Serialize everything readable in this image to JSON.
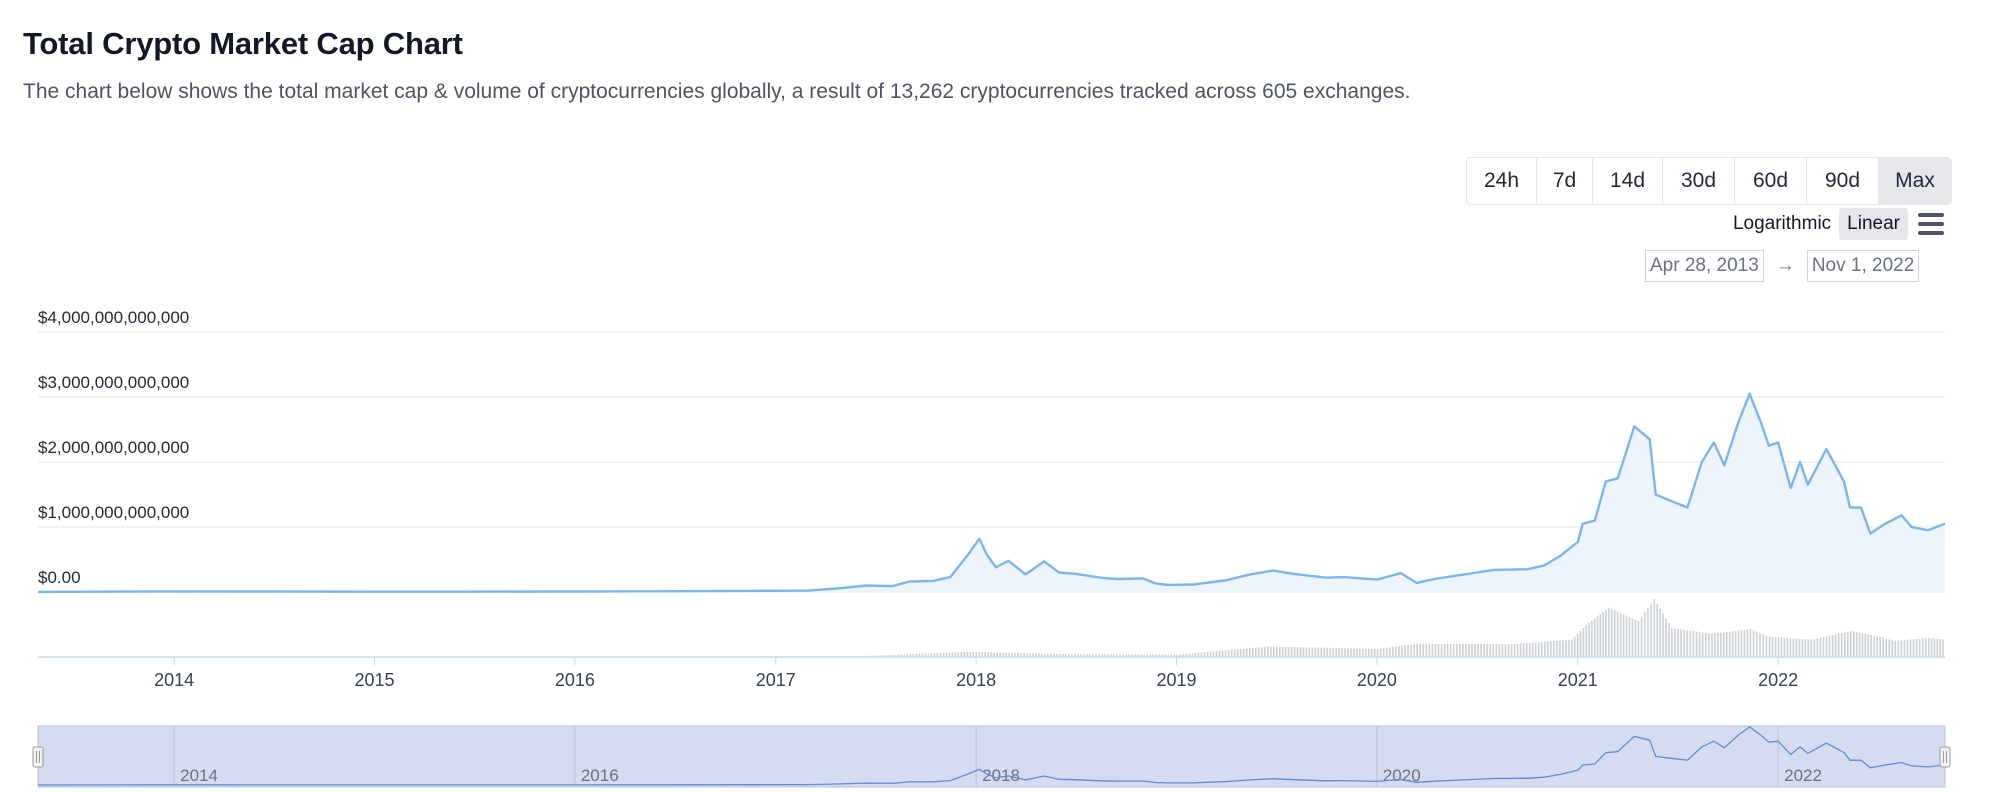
{
  "header": {
    "title": "Total Crypto Market Cap Chart",
    "description": "The chart below shows the total market cap & volume of cryptocurrencies globally, a result of 13,262 cryptocurrencies tracked across 605 exchanges."
  },
  "controls": {
    "ranges": [
      "24h",
      "7d",
      "14d",
      "30d",
      "60d",
      "90d",
      "Max"
    ],
    "active_range": "Max",
    "scale_log": "Logarithmic",
    "scale_linear": "Linear",
    "active_scale": "Linear",
    "menu_icon": "hamburger-menu-icon",
    "date_from": "Apr 28, 2013",
    "date_arrow": "→",
    "date_to": "Nov 1, 2022"
  },
  "colors": {
    "line": "#7cb5ec",
    "area_fill": "#eef4fc",
    "volume": "#cbd0d6",
    "navigator_fill": "#d5dcef",
    "grid": "#e6e6e6"
  },
  "chart_data": {
    "type": "area",
    "title": "",
    "xlabel": "",
    "ylabel": "",
    "y_ticks": [
      "$0.00",
      "$1,000,000,000,000",
      "$2,000,000,000,000",
      "$3,000,000,000,000",
      "$4,000,000,000,000"
    ],
    "ylim": [
      0,
      4000000000000
    ],
    "xlim": [
      "2013-04-28",
      "2022-11-01"
    ],
    "x_ticks": [
      "2014",
      "2015",
      "2016",
      "2017",
      "2018",
      "2019",
      "2020",
      "2021",
      "2022"
    ],
    "navigator_ticks": [
      "2014",
      "2016",
      "2018",
      "2020",
      "2022"
    ],
    "grid": true,
    "legend": "none",
    "series": [
      {
        "x": [
          "2013-04-28",
          "2013-12-01",
          "2014-06-01",
          "2015-01-01",
          "2015-06-01",
          "2016-01-01",
          "2016-06-01",
          "2017-01-01",
          "2017-03-01",
          "2017-05-01",
          "2017-06-15",
          "2017-08-01",
          "2017-09-01",
          "2017-10-15",
          "2017-11-15",
          "2017-12-15",
          "2018-01-07",
          "2018-01-20",
          "2018-02-06",
          "2018-03-01",
          "2018-04-01",
          "2018-05-05",
          "2018-06-01",
          "2018-07-01",
          "2018-08-15",
          "2018-09-15",
          "2018-11-01",
          "2018-11-25",
          "2018-12-15",
          "2019-02-01",
          "2019-04-01",
          "2019-05-15",
          "2019-06-26",
          "2019-08-01",
          "2019-10-01",
          "2019-11-01",
          "2020-01-01",
          "2020-02-14",
          "2020-03-13",
          "2020-04-15",
          "2020-06-01",
          "2020-08-01",
          "2020-10-01",
          "2020-11-01",
          "2020-12-01",
          "2021-01-01",
          "2021-01-10",
          "2021-02-01",
          "2021-02-21",
          "2021-03-15",
          "2021-04-14",
          "2021-05-12",
          "2021-05-23",
          "2021-06-20",
          "2021-07-20",
          "2021-08-15",
          "2021-09-06",
          "2021-09-25",
          "2021-10-20",
          "2021-11-10",
          "2021-12-01",
          "2021-12-15",
          "2022-01-01",
          "2022-01-24",
          "2022-02-10",
          "2022-02-24",
          "2022-03-30",
          "2022-05-01",
          "2022-05-12",
          "2022-06-01",
          "2022-06-18",
          "2022-07-15",
          "2022-08-14",
          "2022-09-01",
          "2022-10-01",
          "2022-11-01"
        ],
        "y": [
          1500000000,
          10000000000,
          7000000000,
          5000000000,
          4000000000,
          7000000000,
          11000000000,
          18000000000,
          22000000000,
          60000000000,
          100000000000,
          90000000000,
          160000000000,
          170000000000,
          230000000000,
          550000000000,
          820000000000,
          580000000000,
          380000000000,
          480000000000,
          270000000000,
          470000000000,
          300000000000,
          280000000000,
          220000000000,
          200000000000,
          210000000000,
          130000000000,
          110000000000,
          115000000000,
          180000000000,
          270000000000,
          330000000000,
          280000000000,
          220000000000,
          230000000000,
          190000000000,
          290000000000,
          140000000000,
          200000000000,
          260000000000,
          340000000000,
          350000000000,
          410000000000,
          560000000000,
          770000000000,
          1050000000000,
          1100000000000,
          1700000000000,
          1750000000000,
          2550000000000,
          2350000000000,
          1500000000000,
          1400000000000,
          1300000000000,
          2000000000000,
          2300000000000,
          1950000000000,
          2600000000000,
          3050000000000,
          2600000000000,
          2250000000000,
          2300000000000,
          1600000000000,
          2000000000000,
          1650000000000,
          2200000000000,
          1700000000000,
          1300000000000,
          1300000000000,
          900000000000,
          1050000000000,
          1180000000000,
          1000000000000,
          950000000000,
          1050000000000
        ]
      },
      {
        "name": "Volume",
        "x": [
          "2013-04-28",
          "2016-01-01",
          "2017-06-01",
          "2017-12-20",
          "2018-06-01",
          "2019-01-01",
          "2019-06-15",
          "2020-01-01",
          "2020-03-13",
          "2020-09-01",
          "2020-12-20",
          "2021-01-15",
          "2021-02-25",
          "2021-04-20",
          "2021-05-19",
          "2021-06-20",
          "2021-09-01",
          "2021-11-10",
          "2021-12-15",
          "2022-03-01",
          "2022-05-12",
          "2022-06-18",
          "2022-08-01",
          "2022-10-01",
          "2022-11-01"
        ],
        "y": [
          0,
          5000000000,
          15000000000,
          90000000000,
          50000000000,
          40000000000,
          180000000000,
          140000000000,
          230000000000,
          220000000000,
          300000000000,
          550000000000,
          850000000000,
          620000000000,
          1000000000000,
          500000000000,
          400000000000,
          480000000000,
          350000000000,
          300000000000,
          450000000000,
          380000000000,
          280000000000,
          330000000000,
          300000000000
        ]
      }
    ]
  }
}
